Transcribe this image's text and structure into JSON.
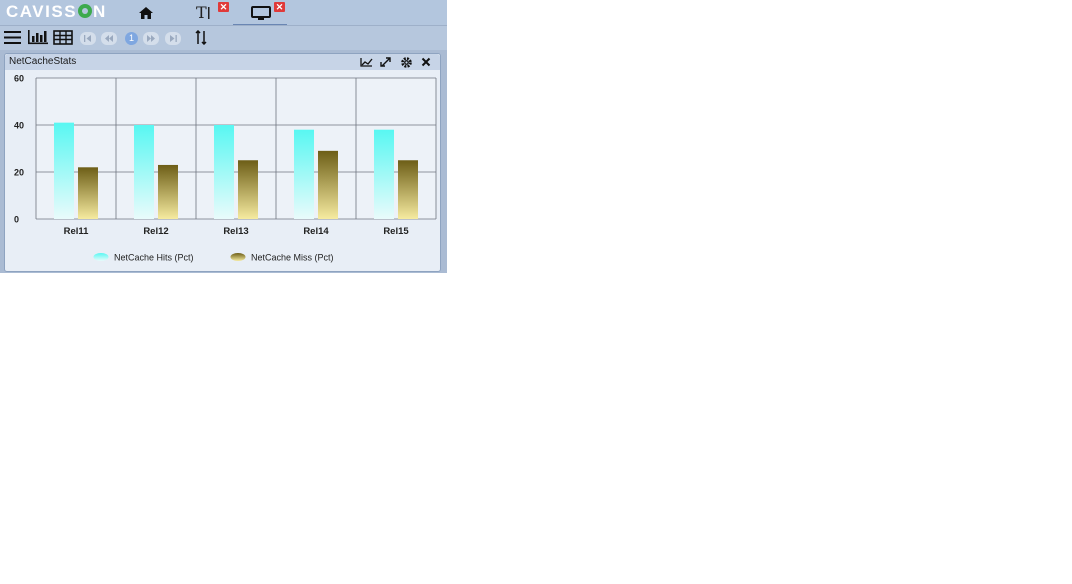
{
  "app": {
    "brand": {
      "prefix": "CAVISS",
      "suffix": "N"
    },
    "tabs": [
      {
        "icon": "home-icon"
      },
      {
        "icon": "text-tool-icon",
        "glyph": "T",
        "closable": true
      },
      {
        "icon": "monitor-icon",
        "closable": true,
        "active": true
      }
    ],
    "toolbar": {
      "icons": [
        "menu-icon",
        "bar-chart-icon",
        "table-icon",
        "first-page-icon",
        "previous-page-icon",
        "next-page-icon",
        "last-page-icon",
        "sort-icon"
      ],
      "page_number": "1"
    }
  },
  "panel": {
    "title": "NetCacheStats",
    "header_icons": [
      "line-chart-icon",
      "expand-icon",
      "settings-icon",
      "close-icon"
    ]
  },
  "chart_data": {
    "type": "bar",
    "categories": [
      "Rel11",
      "Rel12",
      "Rel13",
      "Rel14",
      "Rel15"
    ],
    "series": [
      {
        "name": "NetCache Hits (Pct)",
        "values": [
          41,
          40,
          40,
          38,
          38
        ],
        "color": "#5ff7f3"
      },
      {
        "name": "NetCache Miss (Pct)",
        "values": [
          22,
          23,
          25,
          29,
          25
        ],
        "color": "#7a6a1f"
      }
    ],
    "ylim": [
      0,
      60
    ],
    "yticks": [
      "0",
      "20",
      "40",
      "60"
    ],
    "grid": true,
    "legend_position": "bottom"
  },
  "colors": {
    "accent": "#6a86b3",
    "header_bg": "#b3c6de",
    "close_badge": "#e03a3a"
  }
}
